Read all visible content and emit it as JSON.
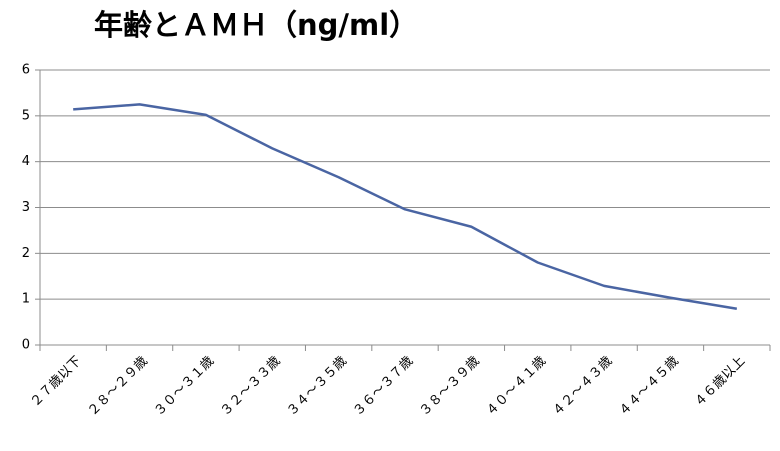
{
  "chart_data": {
    "type": "line",
    "title": "年齢とＡＭＨ（ng/ml）",
    "categories": [
      "２７歳以下",
      "２８～２９歳",
      "３０～３１歳",
      "３２～３３歳",
      "３４～３５歳",
      "３６～３７歳",
      "３８～３９歳",
      "４０～４１歳",
      "４２～４３歳",
      "４４～４５歳",
      "４６歳以上"
    ],
    "values": [
      5.14,
      5.25,
      5.02,
      4.29,
      3.66,
      2.96,
      2.58,
      1.8,
      1.29,
      1.03,
      0.79
    ],
    "color": "#4a65a3",
    "ylim": [
      0,
      6
    ],
    "yticks": [
      0,
      1,
      2,
      3,
      4,
      5,
      6
    ],
    "grid": true
  }
}
